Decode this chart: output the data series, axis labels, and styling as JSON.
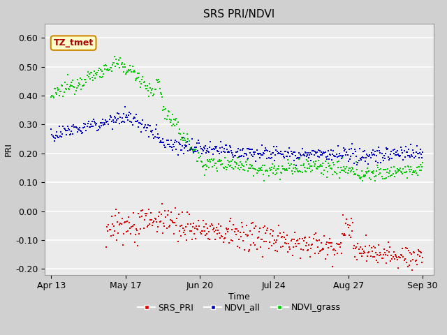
{
  "title": "SRS PRI/NDVI",
  "xlabel": "Time",
  "ylabel": "PRI",
  "ylim": [
    -0.22,
    0.65
  ],
  "yticks": [
    -0.2,
    -0.1,
    0.0,
    0.1,
    0.2,
    0.3,
    0.4,
    0.5,
    0.6
  ],
  "ytick_labels": [
    "-0.20",
    "-0.10",
    "0.00",
    "0.10",
    "0.20",
    "0.30",
    "0.40",
    "0.50",
    "0.60"
  ],
  "bg_color": "#d0d0d0",
  "plot_bg_color": "#ebebeb",
  "colors": {
    "SRS_PRI": "#dd0000",
    "NDVI_all": "#0000cc",
    "NDVI_grass": "#00cc00"
  },
  "legend_label": "TZ_tmet",
  "date_ticks": [
    "Apr 13",
    "May 17",
    "Jun 20",
    "Jul 24",
    "Aug 27",
    "Sep 30"
  ],
  "date_tick_positions": [
    0,
    34,
    68,
    102,
    136,
    170
  ]
}
